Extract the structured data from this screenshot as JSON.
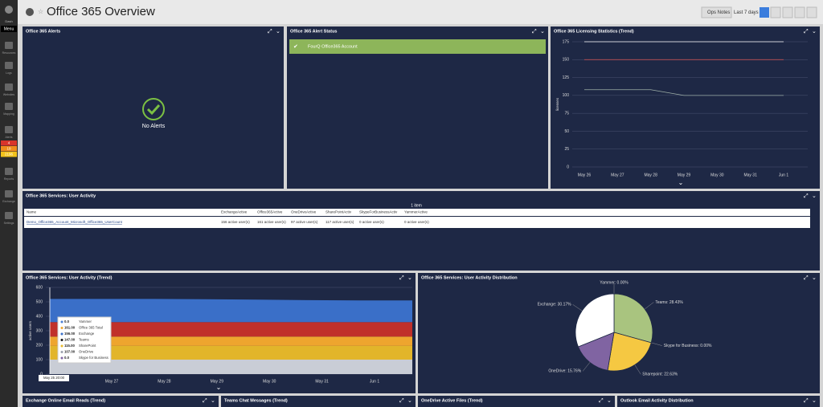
{
  "header": {
    "title": "Office 365 Overview",
    "ops_notes": "Ops Notes",
    "range": "Last 7 days"
  },
  "sidebar": {
    "dash": "Dash",
    "menu": "Menu",
    "items": [
      "Resources",
      "Logs",
      "Websites",
      "Mapping",
      "Alerts",
      "Reports",
      "Exchange",
      "Settings"
    ],
    "alert_counts": [
      "4",
      "19",
      "2196"
    ]
  },
  "panels": {
    "alerts": {
      "title": "Office 365 Alerts",
      "message": "No Alerts"
    },
    "alert_status": {
      "title": "Office 365 Alert Status",
      "item": "FourQ Office365 Account"
    },
    "licensing": {
      "title": "Office 365 Licensing Statistics (Trend)"
    },
    "user_activity": {
      "title": "Office 365 Services: User Activity"
    },
    "activity_trend": {
      "title": "Office 365 Services: User Activity (Trend)"
    },
    "distribution": {
      "title": "Office 365 Services: User Activity Distribution"
    },
    "bottom": [
      "Exchange Online Email Reads (Trend)",
      "Teams Chat Messages (Trend)",
      "OneDrive Active Files (Trend)",
      "Outlook Email Activity Distribution"
    ]
  },
  "table": {
    "count": "1 item",
    "columns": [
      "Name",
      "ExchangeActive",
      "Office365Active",
      "OneDriveActive",
      "SharePointActiv",
      "SkypeForBusinessActiv",
      "YammerActive"
    ],
    "rows": [
      [
        "Demo_Office365_Account_Microsoft_Office365_UserCount",
        "156 active user(s)",
        "161 active user(s)",
        "97 active user(s)",
        "117 active user(s)",
        "0 active user(s)",
        "0 active user(s)"
      ]
    ]
  },
  "tooltip": {
    "time": "May 25 20:00",
    "rows": [
      {
        "value": "0.0",
        "name": "Yammer",
        "color": "#4a7fd4"
      },
      {
        "value": "161.00",
        "name": "Office 365 Total",
        "color": "#f0a830"
      },
      {
        "value": "156.00",
        "name": "Exchange",
        "color": "#3a6fc8"
      },
      {
        "value": "147.00",
        "name": "Teams",
        "color": "#111111"
      },
      {
        "value": "115.00",
        "name": "SharePoint",
        "color": "#e8b92a"
      },
      {
        "value": "107.00",
        "name": "OneDrive",
        "color": "#9aa0ad"
      },
      {
        "value": "0.0",
        "name": "Skype for Business",
        "color": "#8064a2"
      }
    ]
  },
  "chart_data": [
    {
      "type": "line",
      "ylabel": "licenses",
      "categories": [
        "May 26",
        "May 27",
        "May 28",
        "May 29",
        "May 30",
        "May 31",
        "Jun 1"
      ],
      "series": [
        {
          "color": "#ffffff",
          "values": [
            175,
            175,
            175,
            175,
            175,
            175,
            175
          ]
        },
        {
          "color": "#e05a5a",
          "values": [
            150,
            150,
            150,
            150,
            150,
            150,
            150
          ]
        },
        {
          "color": "#9fb0a8",
          "values": [
            108,
            108,
            108,
            100,
            100,
            100,
            100
          ]
        }
      ],
      "ylim": [
        0,
        175
      ],
      "yticks": [
        0,
        25,
        50,
        75,
        100,
        125,
        150,
        175
      ],
      "grid": true
    },
    {
      "type": "stacked_area",
      "ylabel": "active users",
      "xticks": [
        "May 27",
        "May 28",
        "May 29",
        "May 30",
        "May 31",
        "Jun 1"
      ],
      "series": [
        {
          "color": "#c9cdd6",
          "values": [
            100,
            100,
            100,
            100,
            100,
            100,
            100,
            100
          ]
        },
        {
          "color": "#e2b52a",
          "values": [
            95,
            95,
            95,
            95,
            95,
            95,
            95,
            95
          ]
        },
        {
          "color": "#eea52e",
          "values": [
            65,
            65,
            65,
            65,
            65,
            65,
            65,
            65
          ]
        },
        {
          "color": "#c0302a",
          "values": [
            100,
            100,
            100,
            100,
            100,
            100,
            100,
            100
          ]
        },
        {
          "color": "#3a6fc8",
          "values": [
            160,
            160,
            160,
            158,
            155,
            152,
            150,
            150
          ]
        }
      ],
      "ylim": [
        0,
        600
      ],
      "yticks": [
        0,
        100,
        200,
        300,
        400,
        500,
        600
      ],
      "grid": true
    },
    {
      "type": "pie",
      "values": [
        0,
        28.43,
        0,
        22.63,
        15.76,
        30.17
      ],
      "value_labels": [
        "Yammer: 0.00%",
        "Teams: 28.43%",
        "Skype for Business: 0.00%",
        "Sharepoint: 22.63%",
        "OneDrive: 15.76%",
        "Exchange: 30.17%"
      ],
      "colors": [
        "#4a7fd4",
        "#a9c47f",
        "#8064a2",
        "#f5c842",
        "#8064a2",
        "#ffffff"
      ]
    }
  ]
}
